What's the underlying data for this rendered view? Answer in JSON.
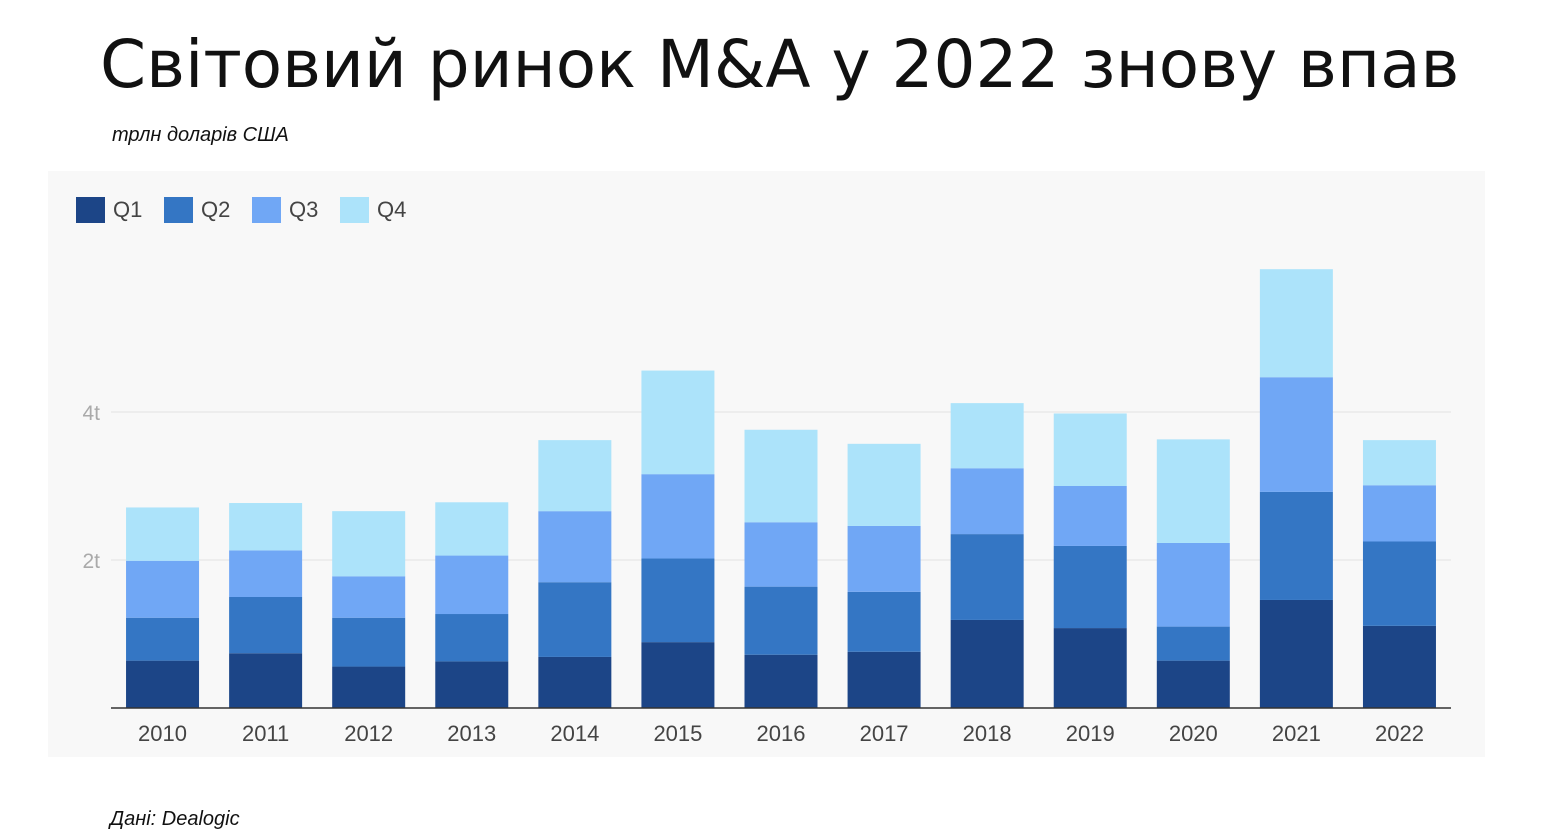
{
  "page": {
    "title": "Світовий ринок M&A у 2022 знову впав",
    "subtitle": "трлн доларів США",
    "source": "Дані: Dealogic"
  },
  "chart_data": {
    "type": "bar",
    "stacked": true,
    "title": "Світовий ринок M&A у 2022 знову впав",
    "subtitle": "трлн доларів США",
    "xlabel": "",
    "ylabel": "",
    "ylim": [
      0,
      6
    ],
    "yticks": [
      {
        "value": 2,
        "label": "2t"
      },
      {
        "value": 4,
        "label": "4t"
      }
    ],
    "grid": true,
    "legend": "top-left",
    "categories": [
      "2010",
      "2011",
      "2012",
      "2013",
      "2014",
      "2015",
      "2016",
      "2017",
      "2018",
      "2019",
      "2020",
      "2021",
      "2022"
    ],
    "series": [
      {
        "name": "Q1",
        "color": "#1c4587",
        "values": [
          0.64,
          0.74,
          0.56,
          0.63,
          0.69,
          0.89,
          0.72,
          0.76,
          1.19,
          1.08,
          0.64,
          1.46,
          1.11
        ]
      },
      {
        "name": "Q2",
        "color": "#3476c4",
        "values": [
          0.58,
          0.76,
          0.66,
          0.64,
          1.01,
          1.13,
          0.92,
          0.81,
          1.16,
          1.11,
          0.46,
          1.46,
          1.14
        ]
      },
      {
        "name": "Q3",
        "color": "#70a7f5",
        "values": [
          0.77,
          0.63,
          0.56,
          0.79,
          0.96,
          1.14,
          0.87,
          0.89,
          0.89,
          0.81,
          1.13,
          1.55,
          0.76
        ]
      },
      {
        "name": "Q4",
        "color": "#ace3fa",
        "values": [
          0.72,
          0.64,
          0.88,
          0.72,
          0.96,
          1.4,
          1.25,
          1.11,
          0.88,
          0.98,
          1.4,
          1.46,
          0.61
        ]
      }
    ]
  }
}
